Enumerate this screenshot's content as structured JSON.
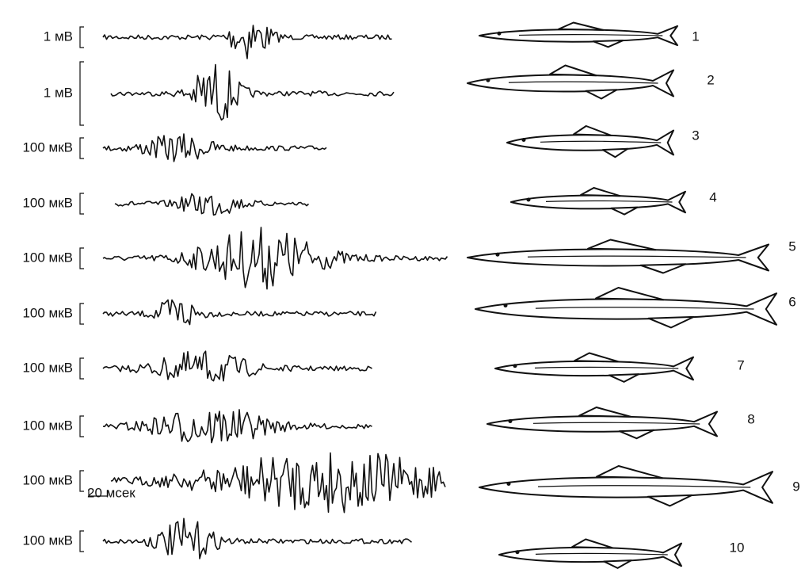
{
  "rows": [
    {
      "scale": "1 мВ",
      "number": "1"
    },
    {
      "scale": "1 мВ",
      "number": "2"
    },
    {
      "scale": "100 мкВ",
      "number": "3"
    },
    {
      "scale": "100 мкВ",
      "number": "4"
    },
    {
      "scale": "100 мкВ",
      "number": "5"
    },
    {
      "scale": "100 мкВ",
      "number": "6"
    },
    {
      "scale": "100 мкВ",
      "number": "7"
    },
    {
      "scale": "100 мкВ",
      "number": "8"
    },
    {
      "scale": "100 мкВ",
      "number": "9"
    },
    {
      "scale": "100 мкВ",
      "number": "10"
    }
  ],
  "time_scale": "20 мсек"
}
